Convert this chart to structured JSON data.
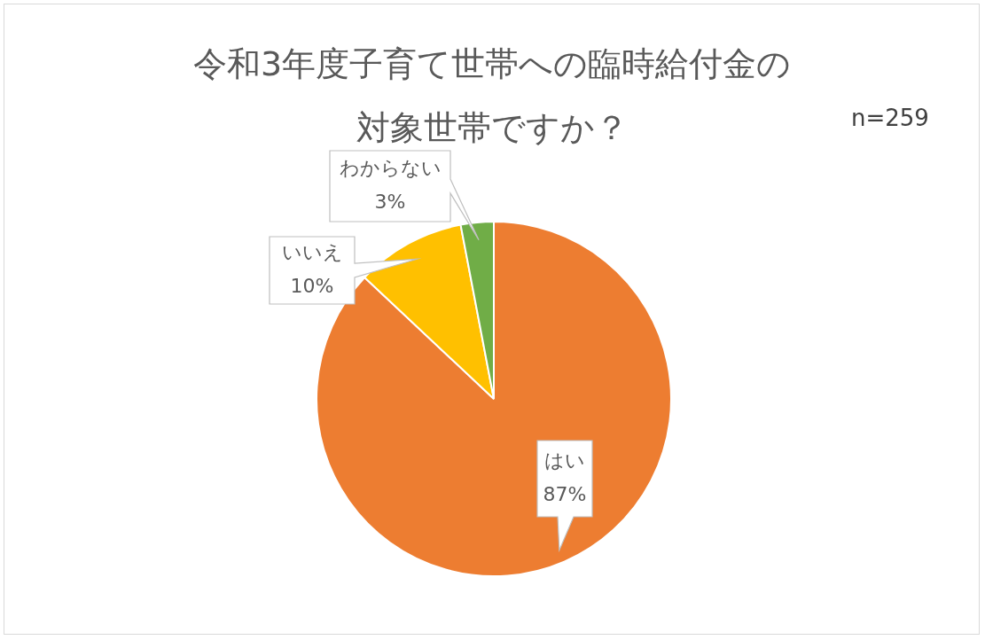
{
  "chart_data": {
    "type": "pie",
    "title": "令和3年度子育て世帯への臨時給付金の対象世帯ですか？",
    "categories": [
      "はい",
      "いいえ",
      "わからない"
    ],
    "values": [
      87,
      10,
      3
    ],
    "colors": [
      "#ed7d31",
      "#ffc000",
      "#70ad47"
    ],
    "value_labels": [
      "87%",
      "10%",
      "3%"
    ],
    "annotations": [
      "n=259"
    ],
    "legend": false
  }
}
